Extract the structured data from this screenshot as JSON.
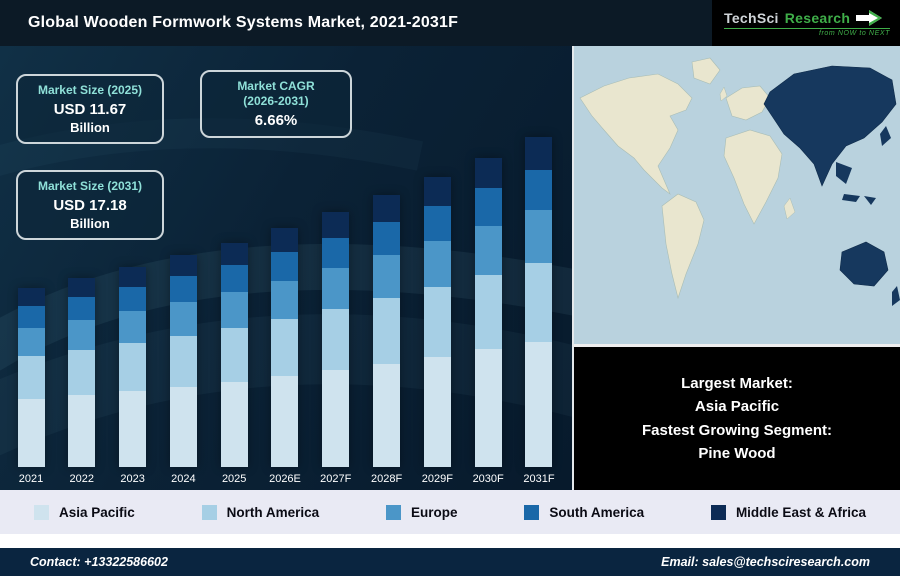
{
  "header": {
    "title": "Global Wooden Formwork Systems Market, 2021-2031F",
    "logo": {
      "name_1": "TechSci",
      "name_2": "Research",
      "tagline": "from NOW to NEXT"
    }
  },
  "info_boxes": [
    {
      "label": "Market Size (2025)",
      "value": "USD 11.67",
      "unit": "Billion"
    },
    {
      "label_line1": "Market CAGR",
      "label_line2": "(2026-2031)",
      "value": "6.66%"
    },
    {
      "label": "Market Size (2031)",
      "value": "USD 17.18",
      "unit": "Billion"
    }
  ],
  "chart_data": {
    "type": "bar",
    "stacked": true,
    "title": "Global Wooden Formwork Systems Market, 2021-2031F",
    "unit": "USD Billion",
    "categories": [
      "2021",
      "2022",
      "2023",
      "2024",
      "2025",
      "2026E",
      "2027F",
      "2028F",
      "2029F",
      "2030F",
      "2031F"
    ],
    "series": [
      {
        "name": "Asia Pacific",
        "color": "#cfe3ee",
        "values": [
          3.53,
          3.74,
          3.96,
          4.19,
          4.43,
          4.73,
          5.05,
          5.38,
          5.74,
          6.12,
          6.53
        ]
      },
      {
        "name": "North America",
        "color": "#a6cfe5",
        "values": [
          2.23,
          2.36,
          2.5,
          2.65,
          2.8,
          2.99,
          3.19,
          3.4,
          3.62,
          3.87,
          4.12
        ]
      },
      {
        "name": "Europe",
        "color": "#4b96c8",
        "values": [
          1.49,
          1.58,
          1.67,
          1.76,
          1.87,
          1.99,
          2.12,
          2.27,
          2.42,
          2.58,
          2.75
        ]
      },
      {
        "name": "South America",
        "color": "#1a68a8",
        "values": [
          1.12,
          1.18,
          1.25,
          1.32,
          1.4,
          1.49,
          1.59,
          1.7,
          1.81,
          1.93,
          2.06
        ]
      },
      {
        "name": "Middle East & Africa",
        "color": "#0c2b55",
        "values": [
          0.93,
          0.99,
          1.04,
          1.1,
          1.17,
          1.25,
          1.33,
          1.42,
          1.51,
          1.61,
          1.72
        ]
      }
    ],
    "totals": [
      9.3,
      9.85,
      10.42,
      11.03,
      11.67,
      12.45,
      13.28,
      14.16,
      15.1,
      16.11,
      17.18
    ],
    "ylim": [
      0,
      17.18
    ],
    "grid": false,
    "legend_position": "bottom"
  },
  "map_caption": {
    "lines": [
      "Largest Market:",
      "Asia Pacific",
      "Fastest Growing Segment:",
      "Pine Wood"
    ]
  },
  "footer": {
    "contact": "Contact: +13322586602",
    "email": "Email: sales@techsciresearch.com"
  },
  "colors": {
    "accent_teal": "#8fe0d8",
    "logo_green": "#3fae49",
    "map_ocean": "#b9d2de",
    "map_land": "#e9e6cf",
    "map_highlight": "#16385e",
    "legend_bg": "#e9eaf4",
    "footer_bg": "#0a2540"
  }
}
